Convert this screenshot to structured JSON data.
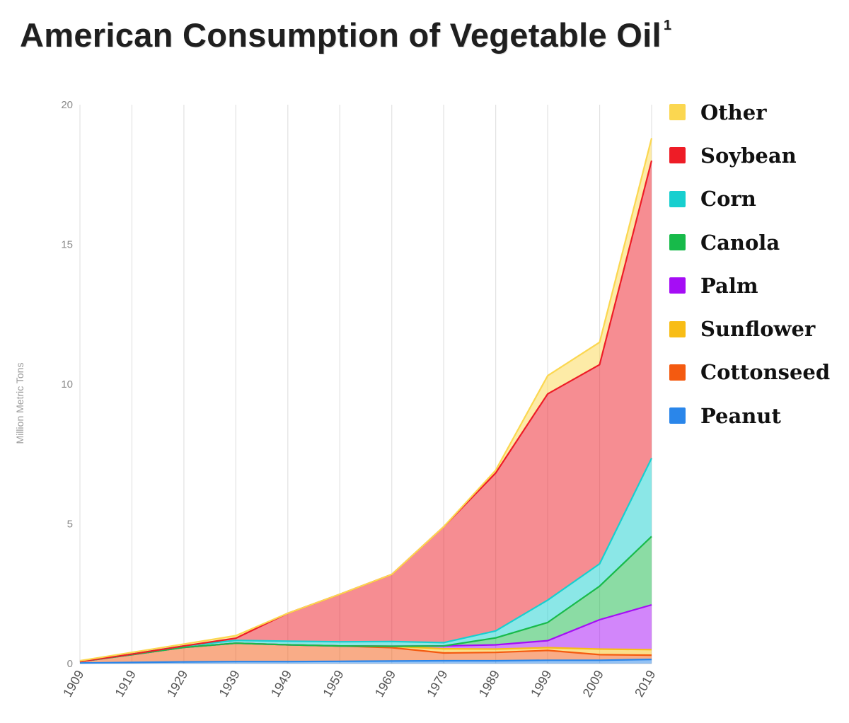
{
  "title": "American Consumption of Vegetable Oil",
  "title_superscript": "1",
  "chart_data": {
    "type": "area",
    "stacked": true,
    "x": [
      1909,
      1919,
      1929,
      1939,
      1949,
      1959,
      1969,
      1979,
      1989,
      1999,
      2009,
      2019
    ],
    "x_tick_labels": [
      "1909",
      "1919",
      "1929",
      "1939",
      "1949",
      "1959",
      "1969",
      "1979",
      "1989",
      "1999",
      "2009",
      "2019"
    ],
    "y_ticks": [
      0,
      5,
      10,
      15,
      20
    ],
    "ylim": [
      0,
      20
    ],
    "ylabel": "Million Metric Tons",
    "xlabel": "",
    "grid": "vertical",
    "legend_position": "right",
    "series": [
      {
        "name": "Peanut",
        "color": "#2a86ea",
        "values": [
          0.02,
          0.04,
          0.06,
          0.07,
          0.07,
          0.08,
          0.09,
          0.1,
          0.1,
          0.12,
          0.12,
          0.15
        ]
      },
      {
        "name": "Cottonseed",
        "color": "#f45a10",
        "values": [
          0.05,
          0.28,
          0.52,
          0.66,
          0.6,
          0.55,
          0.48,
          0.28,
          0.3,
          0.35,
          0.2,
          0.15
        ]
      },
      {
        "name": "Sunflower",
        "color": "#f8bd16",
        "values": [
          0.0,
          0.0,
          0.0,
          0.0,
          0.0,
          0.0,
          0.05,
          0.15,
          0.12,
          0.1,
          0.2,
          0.2
        ]
      },
      {
        "name": "Palm",
        "color": "#a50df5",
        "values": [
          0.0,
          0.0,
          0.0,
          0.0,
          0.0,
          0.0,
          0.0,
          0.1,
          0.15,
          0.25,
          1.05,
          1.6
        ]
      },
      {
        "name": "Canola",
        "color": "#17ba4a",
        "values": [
          0.0,
          0.0,
          0.0,
          0.0,
          0.0,
          0.0,
          0.0,
          0.0,
          0.25,
          0.65,
          1.2,
          2.45
        ]
      },
      {
        "name": "Corn",
        "color": "#17cfcf",
        "values": [
          0.0,
          0.02,
          0.05,
          0.1,
          0.13,
          0.15,
          0.17,
          0.12,
          0.25,
          0.8,
          0.8,
          2.8
        ]
      },
      {
        "name": "Soybean",
        "color": "#ee1c26",
        "values": [
          0.0,
          0.0,
          0.0,
          0.08,
          1.0,
          1.7,
          2.4,
          4.15,
          5.65,
          7.38,
          7.13,
          10.65
        ]
      },
      {
        "name": "Other",
        "color": "#fbd750",
        "values": [
          0.03,
          0.06,
          0.07,
          0.09,
          0.0,
          0.0,
          0.0,
          0.0,
          0.1,
          0.65,
          0.8,
          0.8
        ]
      }
    ]
  }
}
